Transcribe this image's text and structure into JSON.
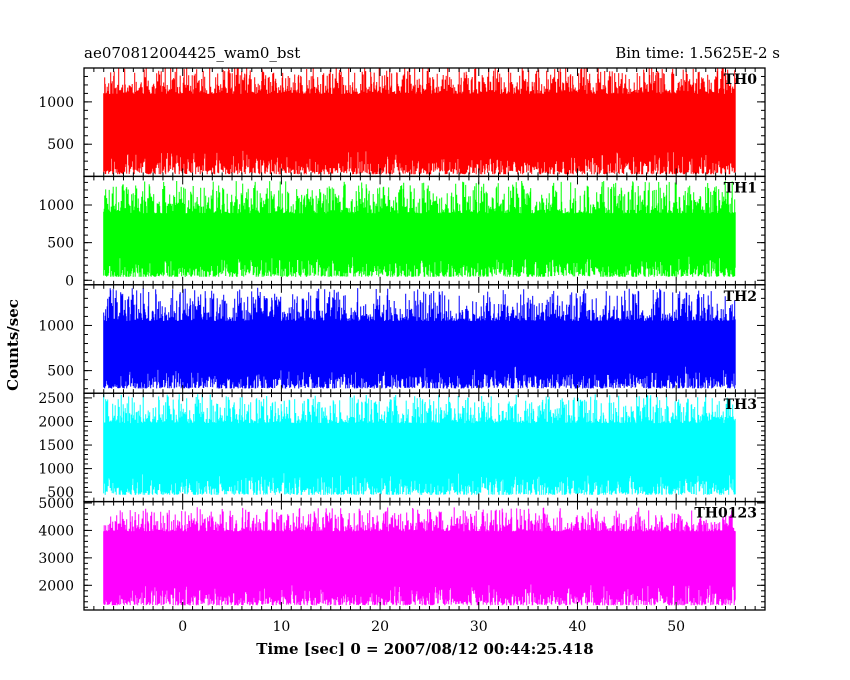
{
  "header": {
    "left": "ae070812004425_wam0_bst",
    "right": "Bin time: 1.5625E-2 s"
  },
  "chart_data": {
    "type": "line",
    "title": "ae070812004425_wam0_bst",
    "bin_time": "Bin time: 1.5625E-2 s",
    "xlabel": "Time [sec] 0 = 2007/08/12 00:44:25.418",
    "ylabel": "Counts/sec",
    "xlim": [
      -10,
      59
    ],
    "x_ticks": [
      0,
      10,
      20,
      30,
      40,
      50
    ],
    "x_tick_labels": [
      "0",
      "10",
      "20",
      "30",
      "40",
      "50"
    ],
    "data_range": [
      -8,
      56
    ],
    "grid": false,
    "panels": [
      {
        "name": "TH0",
        "color": "#ff0000",
        "ylim": [
          120,
          1400
        ],
        "ticks": [
          500,
          1000
        ],
        "tick_labels": [
          "500",
          "1000"
        ],
        "mean": 720,
        "min": 120,
        "max": 1400,
        "seed": 11
      },
      {
        "name": "TH1",
        "color": "#00ff00",
        "ylim": [
          -60,
          1380
        ],
        "ticks": [
          0,
          500,
          1000
        ],
        "tick_labels": [
          "0",
          "500",
          "1000"
        ],
        "mean": 390,
        "min": 20,
        "max": 1300,
        "seed": 23
      },
      {
        "name": "TH2",
        "color": "#0000ff",
        "ylim": [
          250,
          1450
        ],
        "ticks": [
          500,
          1000
        ],
        "tick_labels": [
          "500",
          "1000"
        ],
        "mean": 620,
        "min": 280,
        "max": 1400,
        "seed": 37
      },
      {
        "name": "TH3",
        "color": "#00ffff",
        "ylim": [
          300,
          2600
        ],
        "ticks": [
          500,
          1000,
          1500,
          2000,
          2500
        ],
        "tick_labels": [
          "500",
          "1000",
          "1500",
          "2000",
          "2500"
        ],
        "mean": 1250,
        "min": 400,
        "max": 2550,
        "seed": 41
      },
      {
        "name": "TH0123",
        "color": "#ff00ff",
        "ylim": [
          1100,
          5050
        ],
        "ticks": [
          2000,
          3000,
          4000,
          5000
        ],
        "tick_labels": [
          "2000",
          "3000",
          "4000",
          "5000"
        ],
        "mean": 2950,
        "min": 1200,
        "max": 4800,
        "seed": 53
      }
    ]
  }
}
